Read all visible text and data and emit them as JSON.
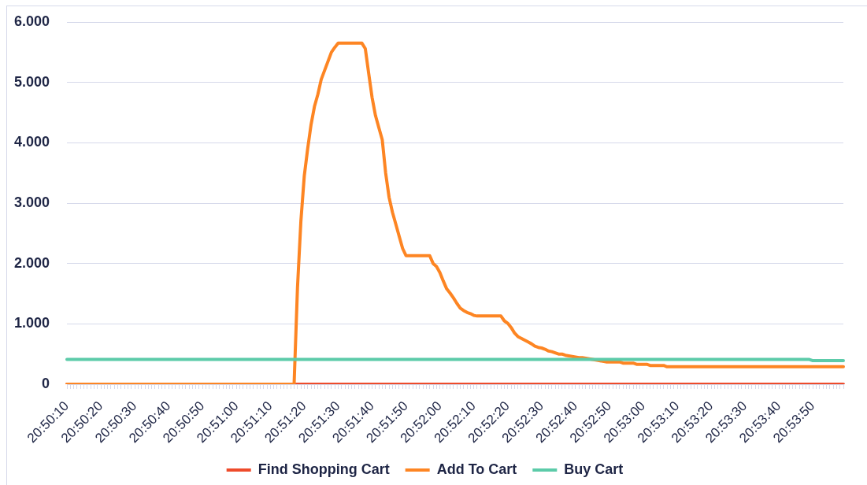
{
  "chart_data": {
    "type": "line",
    "categories": [
      "20:50:10",
      null,
      null,
      null,
      null,
      null,
      null,
      null,
      null,
      null,
      "20:50:20",
      null,
      null,
      null,
      null,
      null,
      null,
      null,
      null,
      null,
      "20:50:30",
      null,
      null,
      null,
      null,
      null,
      null,
      null,
      null,
      null,
      "20:50:40",
      null,
      null,
      null,
      null,
      null,
      null,
      null,
      null,
      null,
      "20:50:50",
      null,
      null,
      null,
      null,
      null,
      null,
      null,
      null,
      null,
      "20:51:00",
      null,
      null,
      null,
      null,
      null,
      null,
      null,
      null,
      null,
      "20:51:10",
      null,
      null,
      null,
      null,
      null,
      null,
      null,
      null,
      null,
      "20:51:20",
      null,
      null,
      null,
      null,
      null,
      null,
      null,
      null,
      null,
      "20:51:30",
      null,
      null,
      null,
      null,
      null,
      null,
      null,
      null,
      null,
      "20:51:40",
      null,
      null,
      null,
      null,
      null,
      null,
      null,
      null,
      null,
      "20:51:50",
      null,
      null,
      null,
      null,
      null,
      null,
      null,
      null,
      null,
      "20:52:00",
      null,
      null,
      null,
      null,
      null,
      null,
      null,
      null,
      null,
      "20:52:10",
      null,
      null,
      null,
      null,
      null,
      null,
      null,
      null,
      null,
      "20:52:20",
      null,
      null,
      null,
      null,
      null,
      null,
      null,
      null,
      null,
      "20:52:30",
      null,
      null,
      null,
      null,
      null,
      null,
      null,
      null,
      null,
      "20:52:40",
      null,
      null,
      null,
      null,
      null,
      null,
      null,
      null,
      null,
      "20:52:50",
      null,
      null,
      null,
      null,
      null,
      null,
      null,
      null,
      null,
      "20:53:00",
      null,
      null,
      null,
      null,
      null,
      null,
      null,
      null,
      null,
      "20:53:10",
      null,
      null,
      null,
      null,
      null,
      null,
      null,
      null,
      null,
      "20:53:20",
      null,
      null,
      null,
      null,
      null,
      null,
      null,
      null,
      null,
      "20:53:30",
      null,
      null,
      null,
      null,
      null,
      null,
      null,
      null,
      null,
      "20:53:40",
      null,
      null,
      null,
      null,
      null,
      null,
      null,
      null,
      null,
      "20:53:50",
      null,
      null,
      null,
      null,
      null,
      null,
      null,
      null,
      null
    ],
    "series": [
      {
        "name": "Find Shopping Cart",
        "color": "#ee4b2b",
        "values": [
          0,
          0,
          0,
          0,
          0,
          0,
          0,
          0,
          0,
          0,
          0,
          0,
          0,
          0,
          0,
          0,
          0,
          0,
          0,
          0,
          0,
          0,
          0,
          0,
          0,
          0,
          0,
          0,
          0,
          0,
          0,
          0,
          0,
          0,
          0,
          0,
          0,
          0,
          0,
          0,
          0,
          0,
          0,
          0,
          0,
          0,
          0,
          0,
          0,
          0,
          0,
          0,
          0,
          0,
          0,
          0,
          0,
          0,
          0,
          0,
          0,
          0,
          0,
          0,
          0,
          0,
          0,
          0,
          0,
          0,
          0,
          0,
          0,
          0,
          0,
          0,
          0,
          0,
          0,
          0,
          0,
          0,
          0,
          0,
          0,
          0,
          0,
          0,
          0,
          0,
          0,
          0,
          0,
          0,
          0,
          0,
          0,
          0,
          0,
          0,
          0,
          0,
          0,
          0,
          0,
          0,
          0,
          0,
          0,
          0,
          0,
          0,
          0,
          0,
          0,
          0,
          0,
          0,
          0,
          0,
          0,
          0,
          0,
          0,
          0,
          0,
          0,
          0,
          0,
          0,
          0,
          0,
          0,
          0,
          0,
          0,
          0,
          0,
          0,
          0,
          0,
          0,
          0,
          0,
          0,
          0,
          0,
          0,
          0,
          0,
          0,
          0,
          0,
          0,
          0,
          0,
          0,
          0,
          0,
          0,
          0,
          0,
          0,
          0,
          0,
          0,
          0,
          0,
          0,
          0,
          0,
          0,
          0,
          0,
          0,
          0,
          0,
          0,
          0,
          0,
          0,
          0,
          0,
          0,
          0,
          0,
          0,
          0,
          0,
          0,
          0,
          0,
          0,
          0,
          0,
          0,
          0,
          0,
          0,
          0,
          0,
          0,
          0,
          0,
          0,
          0,
          0,
          0,
          0,
          0,
          0,
          0,
          0,
          0,
          0,
          0,
          0,
          0,
          0,
          0,
          0,
          0,
          0,
          0,
          0,
          0,
          0,
          0,
          0,
          0
        ]
      },
      {
        "name": "Add To Cart",
        "color": "#fd8523",
        "values": [
          0,
          0,
          0,
          0,
          0,
          0,
          0,
          0,
          0,
          0,
          0,
          0,
          0,
          0,
          0,
          0,
          0,
          0,
          0,
          0,
          0,
          0,
          0,
          0,
          0,
          0,
          0,
          0,
          0,
          0,
          0,
          0,
          0,
          0,
          0,
          0,
          0,
          0,
          0,
          0,
          0,
          0,
          0,
          0,
          0,
          0,
          0,
          0,
          0,
          0,
          0,
          0,
          0,
          0,
          0,
          0,
          0,
          0,
          0,
          0,
          0,
          0,
          0,
          0,
          0,
          0,
          0,
          0,
          1600,
          2700,
          3450,
          3900,
          4300,
          4600,
          4800,
          5050,
          5200,
          5350,
          5500,
          5580,
          5650,
          5650,
          5650,
          5650,
          5650,
          5650,
          5650,
          5650,
          5560,
          5150,
          4750,
          4450,
          4250,
          4050,
          3500,
          3100,
          2850,
          2650,
          2450,
          2250,
          2130,
          2130,
          2130,
          2130,
          2130,
          2130,
          2130,
          2130,
          2000,
          1950,
          1850,
          1710,
          1580,
          1510,
          1430,
          1340,
          1260,
          1220,
          1190,
          1170,
          1140,
          1130,
          1130,
          1130,
          1130,
          1130,
          1130,
          1130,
          1130,
          1050,
          1010,
          940,
          850,
          790,
          760,
          730,
          700,
          670,
          630,
          610,
          600,
          580,
          550,
          540,
          520,
          500,
          500,
          480,
          470,
          460,
          450,
          440,
          440,
          430,
          420,
          410,
          400,
          390,
          380,
          370,
          370,
          370,
          370,
          370,
          350,
          350,
          350,
          350,
          330,
          330,
          330,
          330,
          310,
          310,
          310,
          310,
          310,
          290,
          290,
          290,
          290,
          290,
          290,
          290,
          290,
          290,
          290,
          290,
          290,
          290,
          290,
          290,
          290,
          290,
          290,
          290,
          290,
          290,
          290,
          290,
          290,
          290,
          290,
          290,
          290,
          290,
          290,
          290,
          290,
          290,
          290,
          290,
          290,
          290,
          290,
          290,
          290,
          290,
          290,
          290,
          290,
          290,
          290,
          290,
          290,
          290,
          290,
          290,
          290,
          290
        ]
      },
      {
        "name": "Buy Cart",
        "color": "#5ccba9",
        "values": [
          410,
          410,
          410,
          410,
          410,
          410,
          410,
          410,
          410,
          410,
          410,
          410,
          410,
          410,
          410,
          410,
          410,
          410,
          410,
          410,
          410,
          410,
          410,
          410,
          410,
          410,
          410,
          410,
          410,
          410,
          410,
          410,
          410,
          410,
          410,
          410,
          410,
          410,
          410,
          410,
          410,
          410,
          410,
          410,
          410,
          410,
          410,
          410,
          410,
          410,
          410,
          410,
          410,
          410,
          410,
          410,
          410,
          410,
          410,
          410,
          410,
          410,
          410,
          410,
          410,
          410,
          410,
          410,
          410,
          410,
          410,
          410,
          410,
          410,
          410,
          410,
          410,
          410,
          410,
          410,
          410,
          410,
          410,
          410,
          410,
          410,
          410,
          410,
          410,
          410,
          410,
          410,
          410,
          410,
          410,
          410,
          410,
          410,
          410,
          410,
          410,
          410,
          410,
          410,
          410,
          410,
          410,
          410,
          410,
          410,
          410,
          410,
          410,
          410,
          410,
          410,
          410,
          410,
          410,
          410,
          410,
          410,
          410,
          410,
          410,
          410,
          410,
          410,
          410,
          410,
          410,
          410,
          410,
          410,
          410,
          410,
          410,
          410,
          410,
          410,
          410,
          410,
          410,
          410,
          410,
          410,
          410,
          410,
          410,
          410,
          410,
          410,
          410,
          410,
          410,
          410,
          410,
          410,
          410,
          410,
          410,
          410,
          410,
          410,
          410,
          410,
          410,
          410,
          410,
          410,
          410,
          410,
          410,
          410,
          410,
          410,
          410,
          410,
          410,
          410,
          410,
          410,
          410,
          410,
          410,
          410,
          410,
          410,
          410,
          410,
          410,
          410,
          410,
          410,
          410,
          410,
          410,
          410,
          410,
          410,
          410,
          410,
          410,
          410,
          410,
          410,
          410,
          410,
          410,
          410,
          410,
          410,
          410,
          410,
          410,
          410,
          410,
          410,
          410,
          410,
          390,
          390,
          390,
          390,
          390,
          390,
          390,
          390,
          390,
          390
        ]
      }
    ],
    "ylim": [
      0,
      6000
    ],
    "yticks": [
      0,
      {
        "value": 1000,
        "label": "1.000"
      },
      {
        "value": 2000,
        "label": "2.000"
      },
      {
        "value": 3000,
        "label": "3.000"
      },
      {
        "value": 4000,
        "label": "4.000"
      },
      {
        "value": 5000,
        "label": "5.000"
      },
      {
        "value": 6000,
        "label": "6.000"
      }
    ],
    "grid": "y",
    "legend": "bottom"
  }
}
